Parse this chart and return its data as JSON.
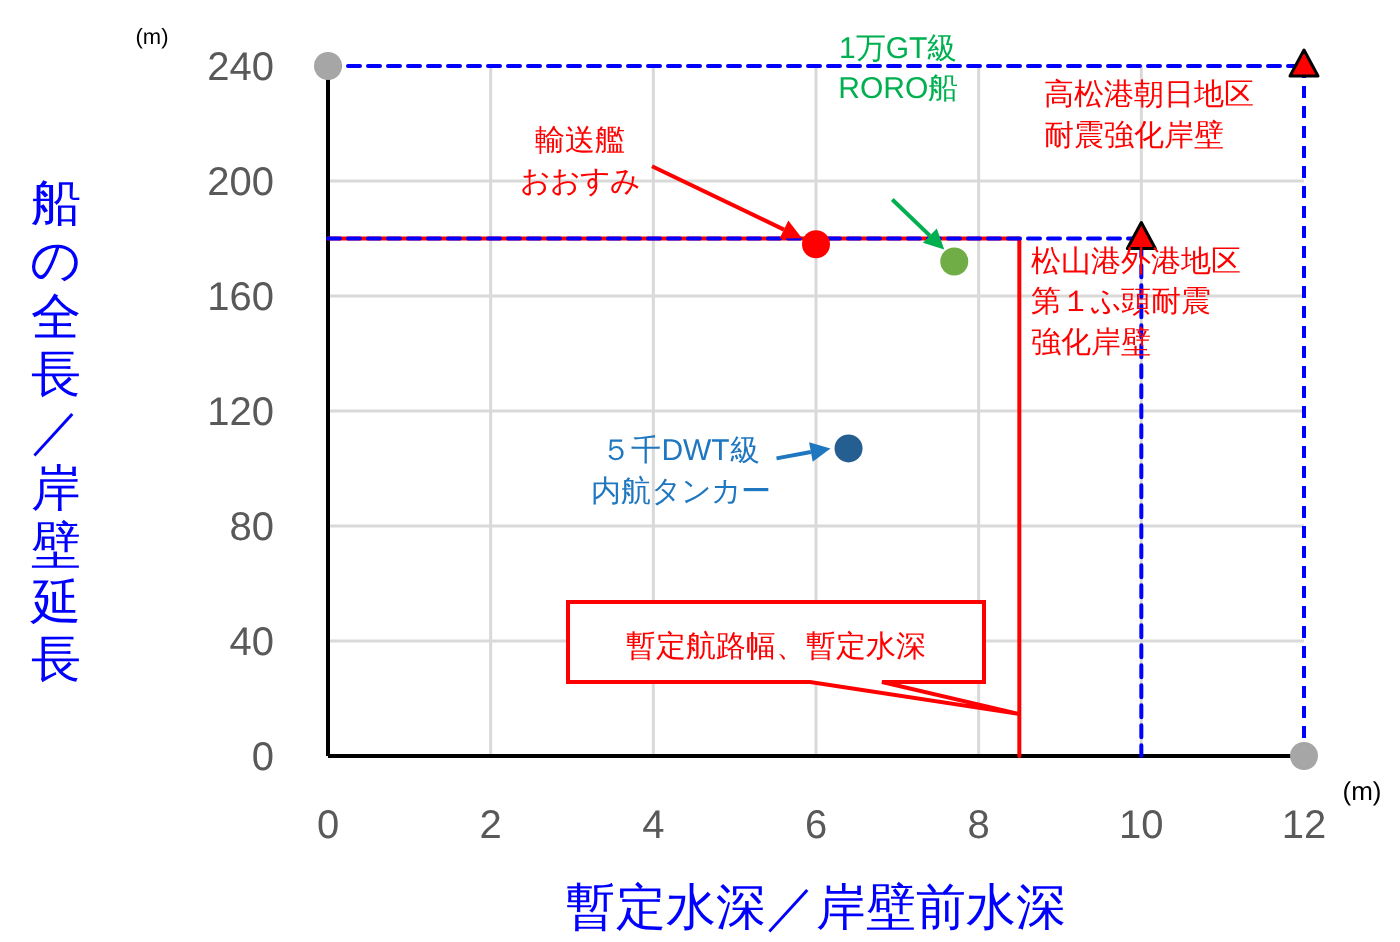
{
  "chart_data": {
    "type": "scatter",
    "xlabel": "暫定水深／岸壁前水深",
    "ylabel": "船の全長／岸壁延長",
    "xlim": [
      0,
      12
    ],
    "ylim": [
      0,
      240
    ],
    "xticks": [
      0,
      2,
      4,
      6,
      8,
      10,
      12
    ],
    "yticks": [
      0,
      40,
      80,
      120,
      160,
      200,
      240
    ],
    "grid": true,
    "ref_lines": [
      {
        "axis": "x",
        "value": 12,
        "color": "#0000ff",
        "line_style": "dashed"
      }
    ],
    "series": [
      {
        "type": "line",
        "line_style": "solid",
        "marker": "none",
        "color": "#ff0000",
        "x": [
          0,
          8.5,
          8.5
        ],
        "values": [
          180,
          180,
          0
        ]
      },
      {
        "type": "line",
        "line_style": "dashed",
        "marker": "none",
        "color": "#0000ff",
        "x": [
          0,
          12
        ],
        "values": [
          240,
          240
        ]
      },
      {
        "type": "line",
        "line_style": "dashed",
        "marker": "none",
        "color": "#0000ff",
        "x": [
          0,
          10,
          10
        ],
        "values": [
          180,
          180,
          0
        ]
      },
      {
        "type": "scatter",
        "marker": "circle",
        "color": "#a6a6a6",
        "x": [
          0,
          12
        ],
        "values": [
          240,
          0
        ]
      },
      {
        "type": "scatter",
        "marker": "circle",
        "color": "#ff0000",
        "x": [
          6
        ],
        "values": [
          178
        ]
      },
      {
        "type": "scatter",
        "marker": "circle",
        "color": "#70ad47",
        "x": [
          7.7
        ],
        "values": [
          172
        ]
      },
      {
        "type": "scatter",
        "marker": "circle",
        "color": "#255e91",
        "x": [
          6.4
        ],
        "values": [
          107
        ]
      },
      {
        "type": "scatter",
        "marker": "triangle",
        "color": "#ff0000",
        "x": [
          12,
          10
        ],
        "values": [
          240,
          180
        ]
      }
    ],
    "annotations": [
      "輸送艦おおすみ",
      "1万GT級RORO船",
      {
        "text": "５千DWT級内航タンカー",
        "x": 6.4,
        "y": 107
      },
      {
        "text": "高松港朝日地区耐震強化岸壁",
        "x": 12,
        "y": 240
      },
      {
        "text": "松山港外港地区第１ふ頭耐震強化岸壁",
        "x": 10,
        "y": 180
      },
      "暫定航路幅、暫定水深",
      "(m)",
      "(m)"
    ]
  }
}
